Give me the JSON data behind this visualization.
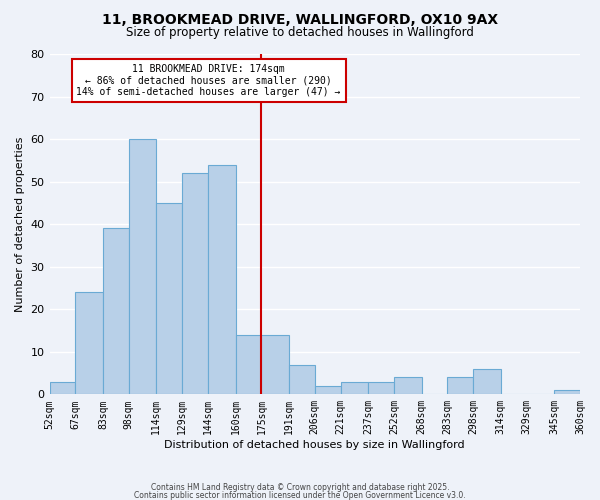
{
  "title": "11, BROOKMEAD DRIVE, WALLINGFORD, OX10 9AX",
  "subtitle": "Size of property relative to detached houses in Wallingford",
  "xlabel": "Distribution of detached houses by size in Wallingford",
  "ylabel": "Number of detached properties",
  "bin_labels": [
    "52sqm",
    "67sqm",
    "83sqm",
    "98sqm",
    "114sqm",
    "129sqm",
    "144sqm",
    "160sqm",
    "175sqm",
    "191sqm",
    "206sqm",
    "221sqm",
    "237sqm",
    "252sqm",
    "268sqm",
    "283sqm",
    "298sqm",
    "314sqm",
    "329sqm",
    "345sqm",
    "360sqm"
  ],
  "bin_edges": [
    52,
    67,
    83,
    98,
    114,
    129,
    144,
    160,
    175,
    191,
    206,
    221,
    237,
    252,
    268,
    283,
    298,
    314,
    329,
    345,
    360
  ],
  "counts": [
    3,
    24,
    39,
    60,
    45,
    52,
    54,
    14,
    14,
    7,
    2,
    3,
    3,
    4,
    0,
    4,
    6,
    0,
    0,
    1
  ],
  "bar_color": "#b8d0e8",
  "bar_edge_color": "#6aaad4",
  "vline_x": 175,
  "vline_color": "#cc0000",
  "annotation_line1": "11 BROOKMEAD DRIVE: 174sqm",
  "annotation_line2": "← 86% of detached houses are smaller (290)",
  "annotation_line3": "14% of semi-detached houses are larger (47) →",
  "annotation_box_color": "#ffffff",
  "annotation_box_edge": "#cc0000",
  "background_color": "#eef2f9",
  "grid_color": "#ffffff",
  "footer_line1": "Contains HM Land Registry data © Crown copyright and database right 2025.",
  "footer_line2": "Contains public sector information licensed under the Open Government Licence v3.0.",
  "ylim": [
    0,
    80
  ],
  "yticks": [
    0,
    10,
    20,
    30,
    40,
    50,
    60,
    70,
    80
  ]
}
